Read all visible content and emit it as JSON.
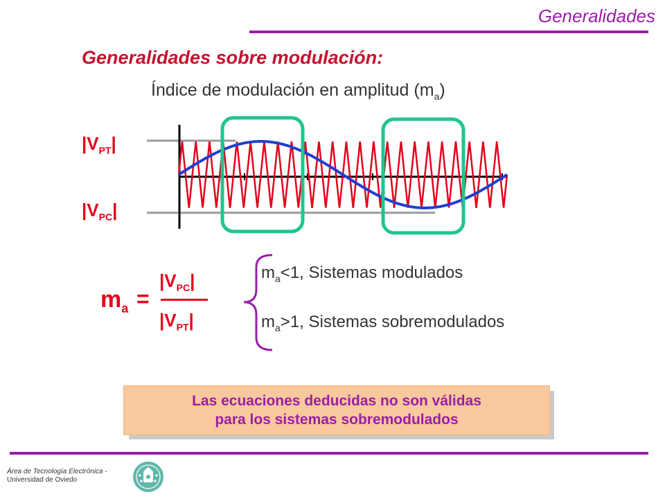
{
  "header": {
    "title": "Generalidades"
  },
  "slide": {
    "heading": "Generalidades sobre modulación:",
    "subtitle_main": "Índice de modulación en amplitud (m",
    "subtitle_sub": "a",
    "subtitle_end": ")"
  },
  "figure": {
    "label_top": {
      "main": "|V",
      "sub": "PT",
      "end": "|"
    },
    "label_bottom": {
      "main": "|V",
      "sub": "PC",
      "end": "|"
    },
    "colors": {
      "carrier": "#e3001b",
      "envelope": "#1f3fd1",
      "highlight": "#22c48e",
      "axis": "#000000",
      "guide": "#9a9a9a"
    }
  },
  "formula": {
    "lhs_main": "m",
    "lhs_sub": "a",
    "equals": "=",
    "num_main": "|V",
    "num_sub": "PC",
    "num_end": "|",
    "den_main": "|V",
    "den_sub": "PT",
    "den_end": "|"
  },
  "conditions": [
    {
      "pre": "m",
      "sub": "a",
      "text": "<1, Sistemas modulados"
    },
    {
      "pre": "m",
      "sub": "a",
      "text": ">1, Sistemas sobremodulados"
    }
  ],
  "note": {
    "line1": "Las ecuaciones deducidas no son válidas",
    "line2": "para los sistemas sobremodulados"
  },
  "footer": {
    "line1": "Área de Tecnología Electrónica -",
    "line2": "Universidad de Oviedo",
    "logo": "university-seal-icon"
  },
  "colors": {
    "accent": "#9b1ea8",
    "heading": "#c8102e",
    "note_bg": "#f9c89d"
  }
}
